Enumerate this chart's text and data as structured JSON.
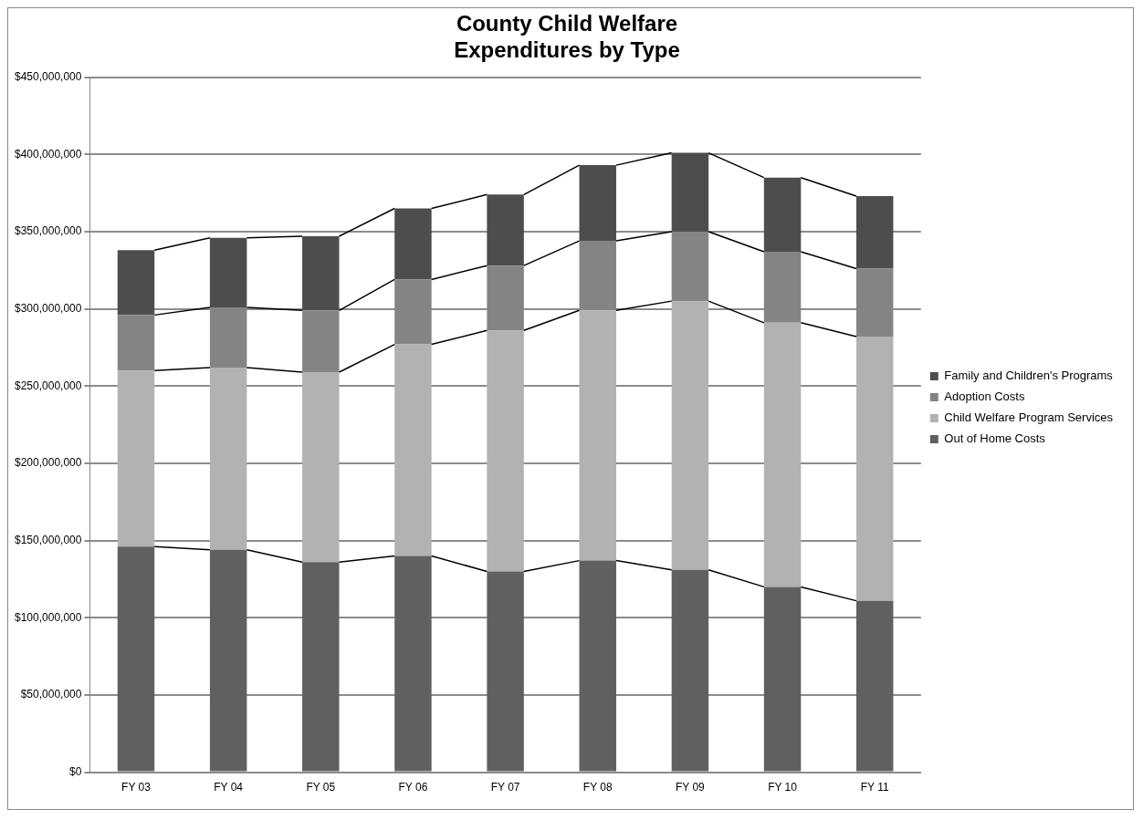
{
  "chart_data": {
    "type": "bar",
    "stacked": true,
    "title": "County Child Welfare\nExpenditures by Type",
    "categories": [
      "FY 03",
      "FY 04",
      "FY 05",
      "FY 06",
      "FY 07",
      "FY 08",
      "FY 09",
      "FY 10",
      "FY 11"
    ],
    "series": [
      {
        "name": "Out of Home Costs",
        "color": "#606060",
        "values": [
          146000000,
          144000000,
          136000000,
          140000000,
          130000000,
          137000000,
          131000000,
          120000000,
          111000000
        ]
      },
      {
        "name": "Child Welfare Program Services",
        "color": "#b2b2b2",
        "values": [
          114000000,
          118000000,
          123000000,
          137000000,
          156000000,
          162000000,
          174000000,
          171000000,
          171000000
        ]
      },
      {
        "name": "Adoption Costs",
        "color": "#848484",
        "values": [
          36000000,
          39000000,
          40000000,
          42000000,
          42000000,
          45000000,
          45000000,
          46000000,
          44000000
        ]
      },
      {
        "name": "Family and Children's Programs",
        "color": "#4d4d4d",
        "values": [
          42000000,
          45000000,
          48000000,
          46000000,
          46000000,
          49000000,
          51000000,
          48000000,
          47000000
        ]
      }
    ],
    "ylim": [
      0,
      450000000
    ],
    "yticks": [
      {
        "value": 0,
        "label": "$0"
      },
      {
        "value": 50000000,
        "label": "$50,000,000"
      },
      {
        "value": 100000000,
        "label": "$100,000,000"
      },
      {
        "value": 150000000,
        "label": "$150,000,000"
      },
      {
        "value": 200000000,
        "label": "$200,000,000"
      },
      {
        "value": 250000000,
        "label": "$250,000,000"
      },
      {
        "value": 300000000,
        "label": "$300,000,000"
      },
      {
        "value": 350000000,
        "label": "$350,000,000"
      },
      {
        "value": 400000000,
        "label": "$400,000,000"
      },
      {
        "value": 450000000,
        "label": "$450,000,000"
      }
    ],
    "grid": "y",
    "legend": "right"
  }
}
